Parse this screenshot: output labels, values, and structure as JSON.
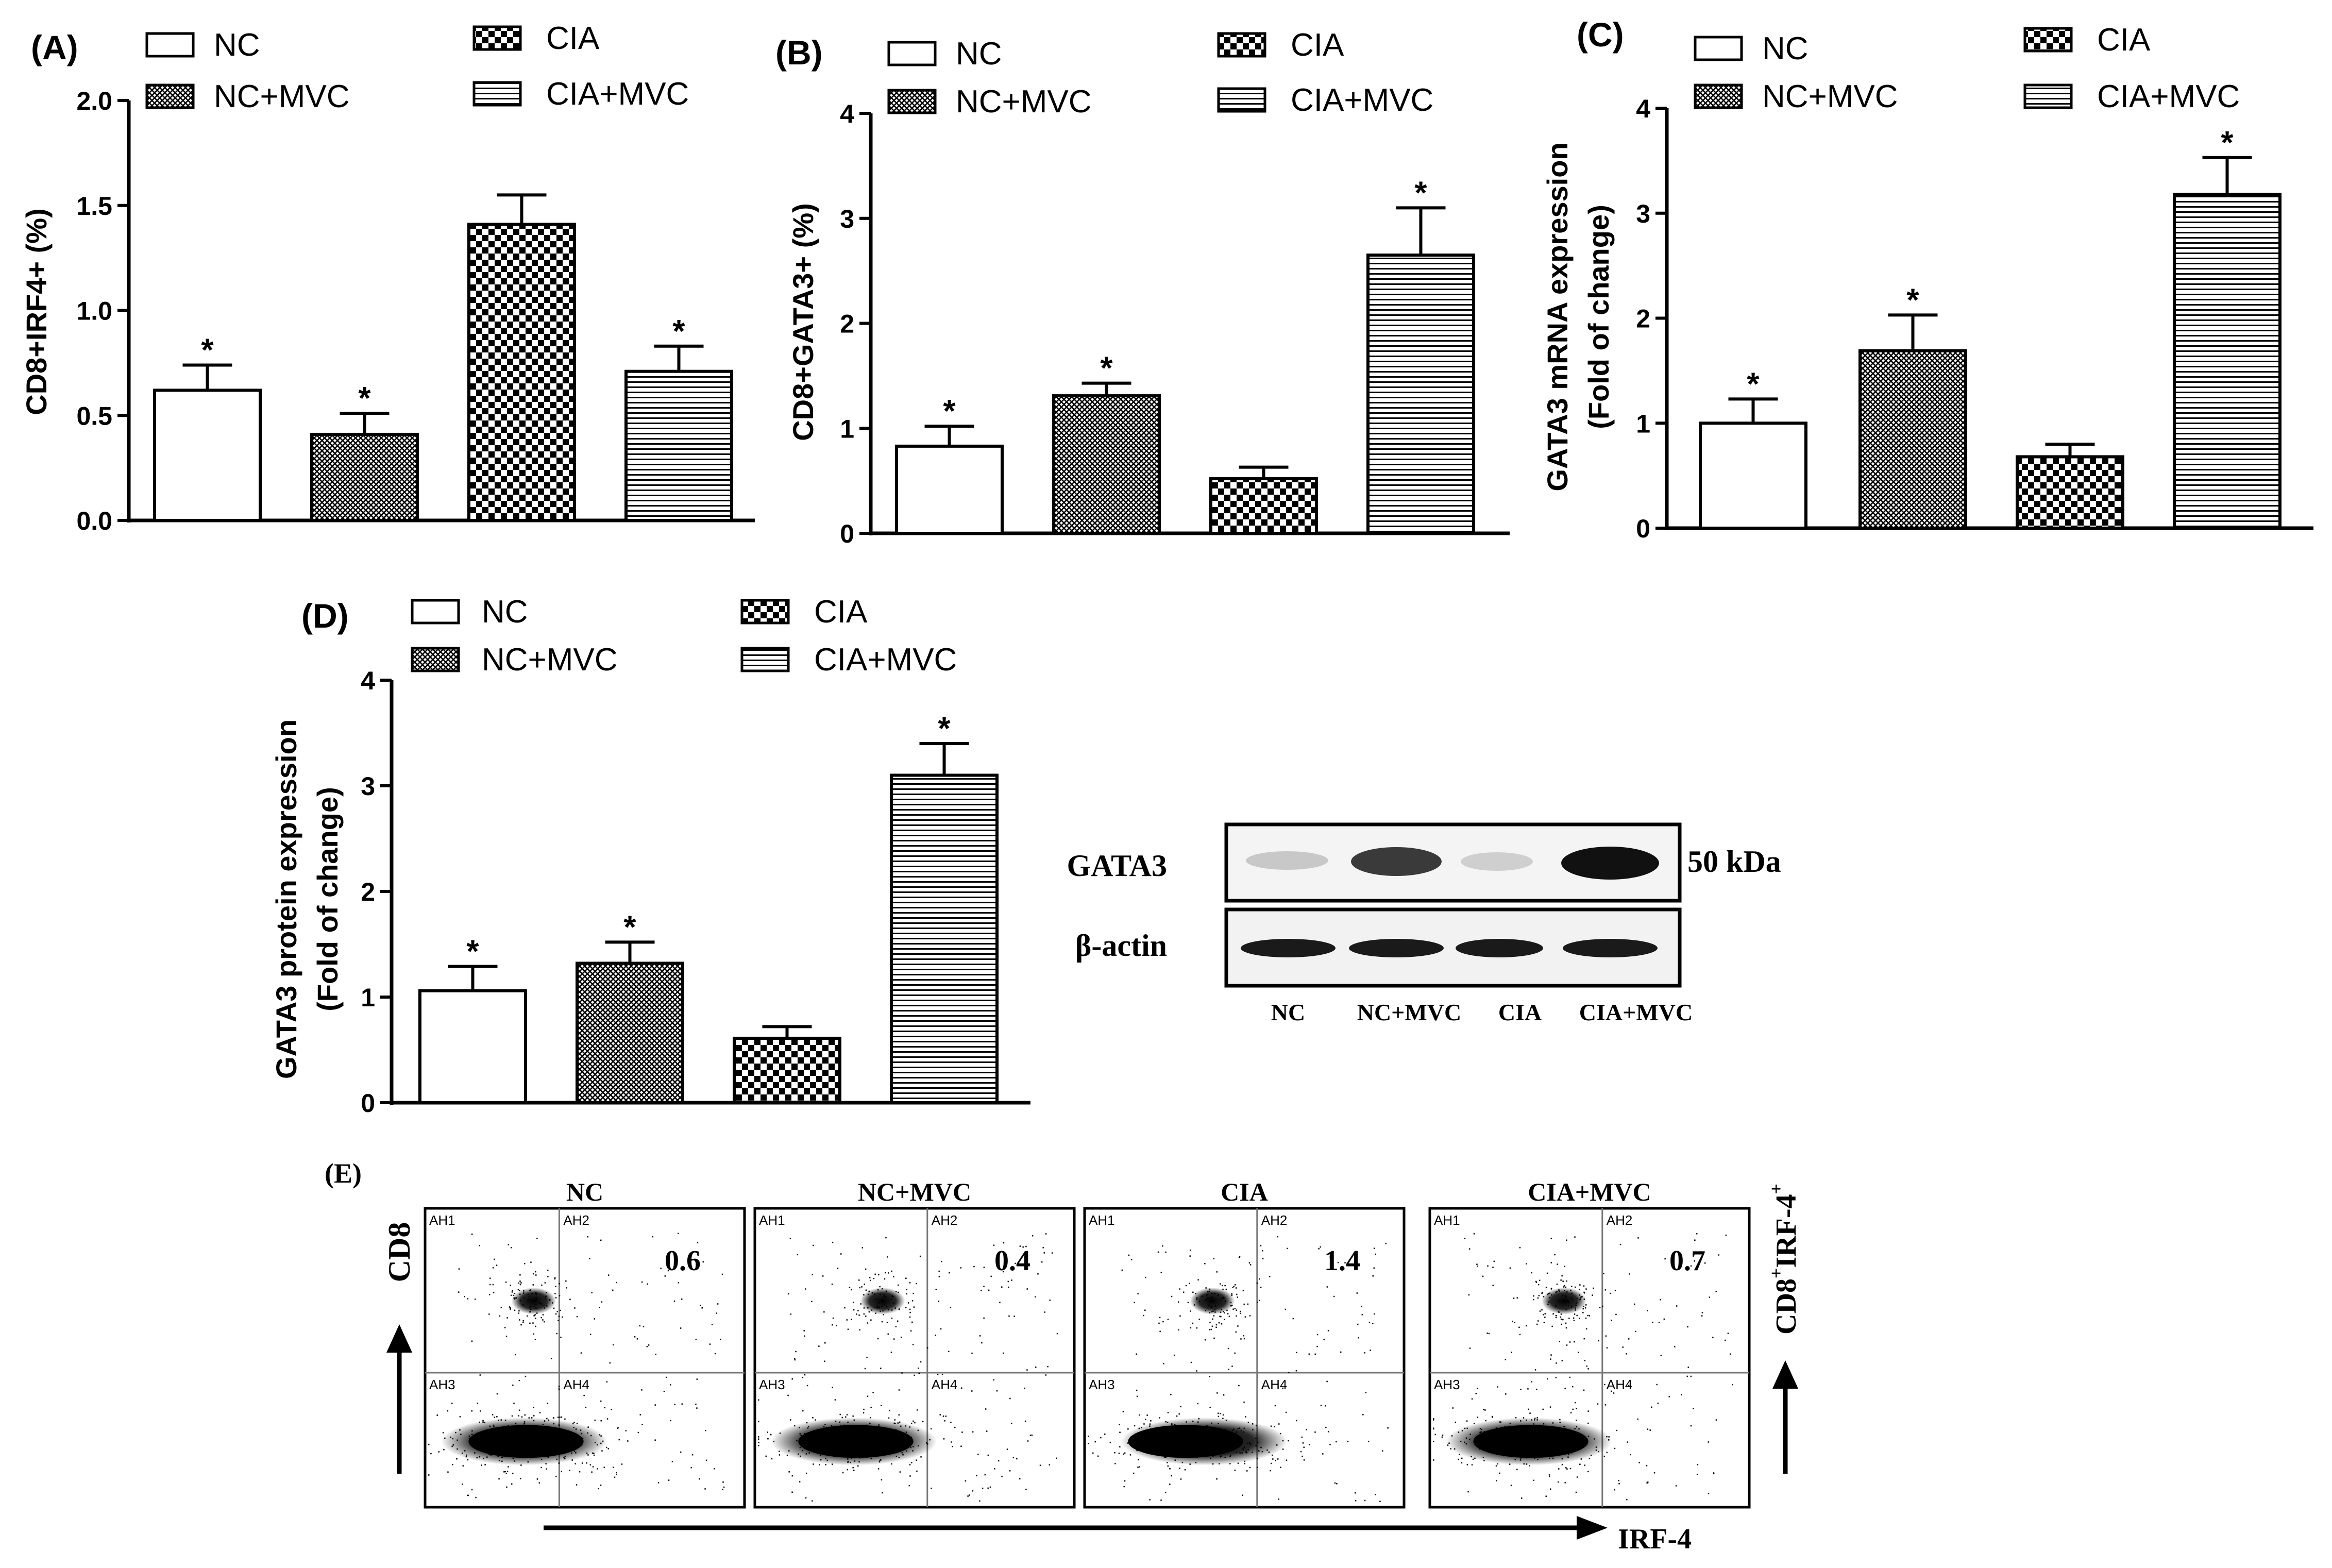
{
  "colors": {
    "ink": "#000000",
    "paper": "#ffffff"
  },
  "chart_data": [
    {
      "panel": "(A)",
      "type": "bar",
      "categories": [
        "NC",
        "NC+MVC",
        "CIA",
        "CIA+MVC"
      ],
      "values": [
        0.62,
        0.41,
        1.41,
        0.71
      ],
      "errors": [
        0.12,
        0.1,
        0.14,
        0.12
      ],
      "significant": [
        true,
        true,
        false,
        true
      ],
      "ylabel": "CD8+IRF4+ (%)",
      "ylim": [
        0,
        2.0
      ],
      "yticks": [
        "0.0",
        "0.5",
        "1.0",
        "1.5",
        "2.0"
      ],
      "legend": [
        "NC",
        "NC+MVC",
        "CIA",
        "CIA+MVC"
      ]
    },
    {
      "panel": "(B)",
      "type": "bar",
      "categories": [
        "NC",
        "NC+MVC",
        "CIA",
        "CIA+MVC"
      ],
      "values": [
        0.83,
        1.31,
        0.52,
        2.65
      ],
      "errors": [
        0.19,
        0.12,
        0.11,
        0.45
      ],
      "significant": [
        true,
        true,
        false,
        true
      ],
      "ylabel": "CD8+GATA3+ (%)",
      "ylim": [
        0,
        4
      ],
      "yticks": [
        "0",
        "1",
        "2",
        "3",
        "4"
      ],
      "legend": [
        "NC",
        "NC+MVC",
        "CIA",
        "CIA+MVC"
      ]
    },
    {
      "panel": "(C)",
      "type": "bar",
      "categories": [
        "NC",
        "NC+MVC",
        "CIA",
        "CIA+MVC"
      ],
      "values": [
        1.0,
        1.69,
        0.68,
        3.18
      ],
      "errors": [
        0.23,
        0.34,
        0.12,
        0.35
      ],
      "significant": [
        true,
        true,
        false,
        true
      ],
      "ylabel": "GATA3 mRNA expression",
      "ylabel2": "(Fold of change)",
      "ylim": [
        0,
        4
      ],
      "yticks": [
        "0",
        "1",
        "2",
        "3",
        "4"
      ],
      "legend": [
        "NC",
        "NC+MVC",
        "CIA",
        "CIA+MVC"
      ]
    },
    {
      "panel": "(D)",
      "type": "bar",
      "categories": [
        "NC",
        "NC+MVC",
        "CIA",
        "CIA+MVC"
      ],
      "values": [
        1.06,
        1.32,
        0.61,
        3.1
      ],
      "errors": [
        0.23,
        0.2,
        0.11,
        0.3
      ],
      "significant": [
        true,
        true,
        false,
        true
      ],
      "ylabel": "GATA3 protein expression",
      "ylabel2": "(Fold of change)",
      "ylim": [
        0,
        4
      ],
      "yticks": [
        "0",
        "1",
        "2",
        "3",
        "4"
      ],
      "legend": [
        "NC",
        "NC+MVC",
        "CIA",
        "CIA+MVC"
      ]
    }
  ],
  "western": {
    "rows": [
      "GATA3",
      "β-actin"
    ],
    "size_label": "50 kDa",
    "lanes": [
      "NC",
      "NC+MVC",
      "CIA",
      "CIA+MVC"
    ]
  },
  "flow": {
    "panel": "(E)",
    "plots": [
      {
        "title": "NC",
        "value": "0.6"
      },
      {
        "title": "NC+MVC",
        "value": "0.4"
      },
      {
        "title": "CIA",
        "value": "1.4"
      },
      {
        "title": "CIA+MVC",
        "value": "0.7"
      }
    ],
    "gates": [
      "AH1",
      "AH2",
      "AH3",
      "AH4"
    ],
    "y_axis": "CD8",
    "x_axis": "IRF-4",
    "right_axis_main": "CD8",
    "right_axis_sup1": "+",
    "right_axis_mid": "IRF-4",
    "right_axis_sup2": "+"
  }
}
